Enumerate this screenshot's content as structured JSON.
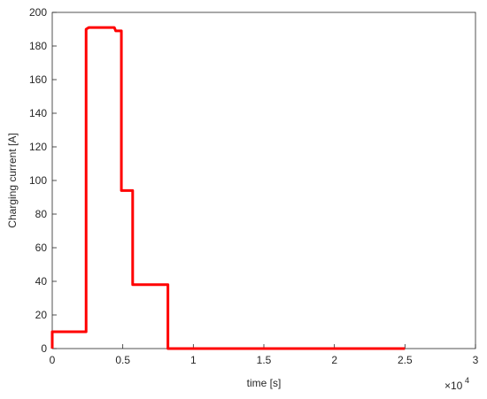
{
  "chart_data": {
    "type": "line",
    "xlabel": "time [s]",
    "ylabel": "Charging current [A]",
    "x_multiplier": "×10",
    "x_multiplier_exponent": "4",
    "x": [
      0,
      0,
      2400,
      2400,
      2600,
      4400,
      4500,
      4900,
      4900,
      5700,
      5700,
      8200,
      8200,
      25000
    ],
    "series": [
      {
        "color": "#ff0000",
        "values": [
          0,
          10,
          10,
          190,
          191,
          191,
          189,
          189,
          94,
          94,
          38,
          38,
          0,
          0
        ]
      }
    ],
    "xlim": [
      0,
      30000
    ],
    "xticks": [
      0,
      {
        "value": 5000,
        "label": "0.5"
      },
      {
        "value": 10000,
        "label": "1"
      },
      {
        "value": 15000,
        "label": "1.5"
      },
      {
        "value": 20000,
        "label": "2"
      },
      {
        "value": 25000,
        "label": "2.5"
      },
      {
        "value": 30000,
        "label": "3"
      }
    ],
    "ylim": [
      0,
      200
    ],
    "yticks": [
      0,
      20,
      40,
      60,
      80,
      100,
      120,
      140,
      160,
      180,
      200
    ],
    "grid": false
  }
}
